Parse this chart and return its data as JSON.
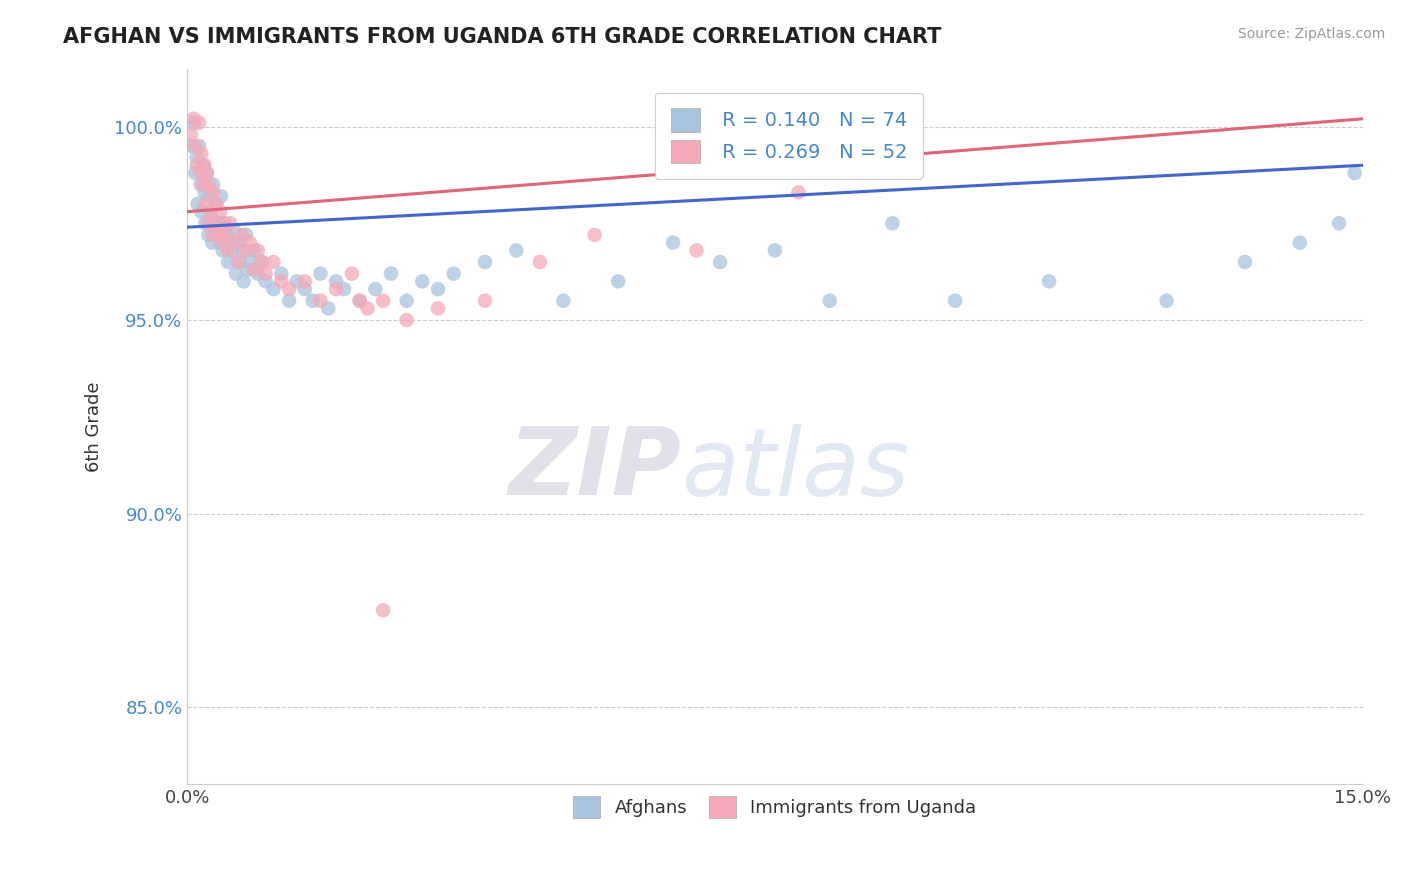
{
  "title": "AFGHAN VS IMMIGRANTS FROM UGANDA 6TH GRADE CORRELATION CHART",
  "source": "Source: ZipAtlas.com",
  "ylabel": "6th Grade",
  "xlim": [
    0.0,
    15.0
  ],
  "ylim": [
    83.0,
    101.5
  ],
  "yticks": [
    85.0,
    90.0,
    95.0,
    100.0
  ],
  "xticks": [
    0.0,
    5.0,
    10.0,
    15.0
  ],
  "xtick_labels": [
    "0.0%",
    "",
    "",
    "15.0%"
  ],
  "ytick_labels": [
    "85.0%",
    "90.0%",
    "95.0%",
    "100.0%"
  ],
  "r_blue": 0.14,
  "n_blue": 74,
  "r_pink": 0.269,
  "n_pink": 52,
  "blue_color": "#A8C4E0",
  "pink_color": "#F4A8B8",
  "blue_line_color": "#4466CC",
  "pink_line_color": "#DD6677",
  "watermark_zip": "ZIP",
  "watermark_atlas": "atlas",
  "blue_line_x0": 0.0,
  "blue_line_y0": 97.4,
  "blue_line_x1": 15.0,
  "blue_line_y1": 99.0,
  "pink_line_x0": 0.0,
  "pink_line_y0": 97.8,
  "pink_line_x1": 15.0,
  "pink_line_y1": 100.2,
  "afghans_x": [
    0.05,
    0.08,
    0.1,
    0.12,
    0.13,
    0.15,
    0.17,
    0.18,
    0.2,
    0.22,
    0.23,
    0.25,
    0.27,
    0.28,
    0.3,
    0.32,
    0.33,
    0.35,
    0.37,
    0.4,
    0.42,
    0.43,
    0.45,
    0.47,
    0.5,
    0.52,
    0.55,
    0.57,
    0.6,
    0.62,
    0.65,
    0.67,
    0.7,
    0.72,
    0.75,
    0.77,
    0.8,
    0.85,
    0.9,
    0.95,
    1.0,
    1.1,
    1.2,
    1.3,
    1.4,
    1.5,
    1.6,
    1.7,
    1.8,
    1.9,
    2.0,
    2.2,
    2.4,
    2.6,
    2.8,
    3.0,
    3.2,
    3.4,
    3.8,
    4.2,
    4.8,
    5.5,
    6.2,
    6.8,
    7.5,
    8.2,
    9.0,
    9.8,
    11.0,
    12.5,
    13.5,
    14.2,
    14.7,
    14.9
  ],
  "afghans_y": [
    99.5,
    100.1,
    98.8,
    99.2,
    98.0,
    99.5,
    98.5,
    97.8,
    99.0,
    98.3,
    97.5,
    98.8,
    97.2,
    98.2,
    97.8,
    97.0,
    98.5,
    97.3,
    98.0,
    97.5,
    97.0,
    98.2,
    96.8,
    97.5,
    97.2,
    96.5,
    97.0,
    96.8,
    97.3,
    96.2,
    97.0,
    96.5,
    96.8,
    96.0,
    97.2,
    96.3,
    96.5,
    96.8,
    96.2,
    96.5,
    96.0,
    95.8,
    96.2,
    95.5,
    96.0,
    95.8,
    95.5,
    96.2,
    95.3,
    96.0,
    95.8,
    95.5,
    95.8,
    96.2,
    95.5,
    96.0,
    95.8,
    96.2,
    96.5,
    96.8,
    95.5,
    96.0,
    97.0,
    96.5,
    96.8,
    95.5,
    97.5,
    95.5,
    96.0,
    95.5,
    96.5,
    97.0,
    97.5,
    98.8
  ],
  "uganda_x": [
    0.05,
    0.08,
    0.1,
    0.12,
    0.15,
    0.17,
    0.18,
    0.2,
    0.22,
    0.23,
    0.25,
    0.27,
    0.28,
    0.3,
    0.32,
    0.33,
    0.35,
    0.37,
    0.4,
    0.42,
    0.45,
    0.47,
    0.5,
    0.52,
    0.55,
    0.6,
    0.65,
    0.7,
    0.75,
    0.8,
    0.85,
    0.9,
    0.95,
    1.0,
    1.1,
    1.2,
    1.3,
    1.5,
    1.7,
    1.9,
    2.1,
    2.3,
    2.5,
    2.8,
    3.2,
    3.8,
    4.5,
    5.2,
    6.5,
    7.8,
    2.2,
    2.5
  ],
  "uganda_y": [
    99.8,
    100.2,
    99.5,
    99.0,
    100.1,
    98.8,
    99.3,
    98.5,
    99.0,
    98.0,
    98.8,
    97.5,
    98.5,
    97.8,
    97.2,
    98.3,
    97.5,
    98.0,
    97.3,
    97.8,
    97.0,
    97.5,
    97.2,
    96.8,
    97.5,
    97.0,
    96.5,
    97.2,
    96.8,
    97.0,
    96.3,
    96.8,
    96.5,
    96.2,
    96.5,
    96.0,
    95.8,
    96.0,
    95.5,
    95.8,
    96.2,
    95.3,
    95.5,
    95.0,
    95.3,
    95.5,
    96.5,
    97.2,
    96.8,
    98.3,
    95.5,
    87.5
  ]
}
